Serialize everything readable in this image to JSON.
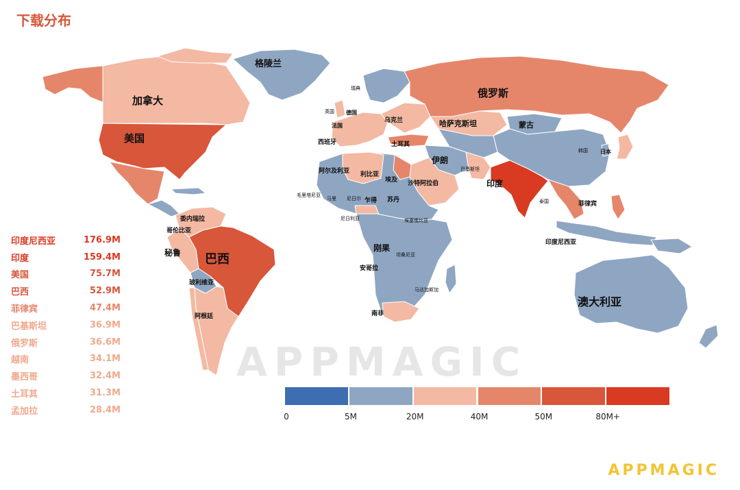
{
  "title": "下载分布",
  "colors": {
    "accent": "#d8563a",
    "logo": "#f2c432",
    "scale": [
      "#3f6db1",
      "#8fa6c2",
      "#f3b9a3",
      "#e5866b",
      "#d8563a",
      "#d93a22"
    ]
  },
  "country_labels": {
    "greenland": "格陵兰",
    "canada": "加拿大",
    "usa": "美国",
    "russia": "俄罗斯",
    "brazil": "巴西",
    "australia": "澳大利亚",
    "india": "印度",
    "kazakhstan": "哈萨克斯坦",
    "mongolia": "蒙古",
    "iran": "伊朗",
    "turkey": "土耳其",
    "saudi": "沙特阿拉伯",
    "egypt": "埃及",
    "libya": "利比亚",
    "algeria": "阿尔及利亚",
    "sudan": "苏丹",
    "chad": "乍得",
    "niger": "尼日尔",
    "mali": "马里",
    "mauritania": "毛里塔尼亚",
    "nigeria": "尼日利亚",
    "ethiopia": "埃塞俄比亚",
    "congo": "刚果",
    "tanzania": "坦桑尼亚",
    "angola": "安哥拉",
    "madagascar": "马达加斯加",
    "south_africa": "南非",
    "peru": "秘鲁",
    "bolivia": "玻利维亚",
    "argentina": "阿根廷",
    "venezuela": "委内瑞拉",
    "colombia": "哥伦比亚",
    "spain": "西班牙",
    "france": "法国",
    "germany": "德国",
    "uk": "英国",
    "sweden": "瑞典",
    "ukraine": "乌克兰",
    "pakistan": "巴基斯坦",
    "thailand": "泰国",
    "philippines": "菲律宾",
    "indonesia": "印度尼西亚",
    "korea": "韩国",
    "japan": "日本"
  },
  "ranking": [
    {
      "country": "印度尼西亚",
      "value": "176.9M",
      "color": "#d93a22"
    },
    {
      "country": "印度",
      "value": "159.4M",
      "color": "#d93a22"
    },
    {
      "country": "美国",
      "value": "75.7M",
      "color": "#d8563a"
    },
    {
      "country": "巴西",
      "value": "52.9M",
      "color": "#d8563a"
    },
    {
      "country": "菲律宾",
      "value": "47.4M",
      "color": "#e5866b"
    },
    {
      "country": "巴基斯坦",
      "value": "36.9M",
      "color": "#f0a98e"
    },
    {
      "country": "俄罗斯",
      "value": "36.6M",
      "color": "#f0a98e"
    },
    {
      "country": "越南",
      "value": "34.1M",
      "color": "#f0a98e"
    },
    {
      "country": "墨西哥",
      "value": "32.4M",
      "color": "#f0a98e"
    },
    {
      "country": "土耳其",
      "value": "31.3M",
      "color": "#f0a98e"
    },
    {
      "country": "孟加拉",
      "value": "28.4M",
      "color": "#f0a98e"
    }
  ],
  "legend": {
    "ticks": [
      "0",
      "5M",
      "20M",
      "40M",
      "50M",
      "80M+"
    ]
  },
  "watermark": "APPMAGIC",
  "logo": "APPMAGIC"
}
